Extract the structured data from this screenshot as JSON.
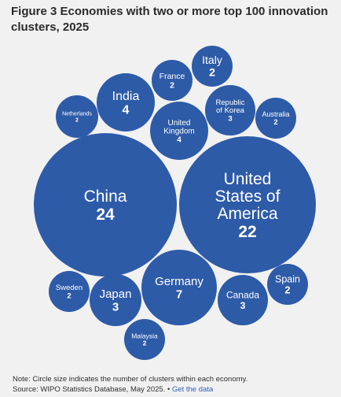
{
  "title": "Figure 3 Economies with two or more top 100 innovation clusters, 2025",
  "chart_data": {
    "type": "bubble",
    "title": "Figure 3 Economies with two or more top 100 innovation clusters, 2025",
    "color": "#2e5ba8",
    "label_color": "#ffffff",
    "series": [
      {
        "name_lines": [
          "China"
        ],
        "value": 24
      },
      {
        "name_lines": [
          "United",
          "States of",
          "America"
        ],
        "value": 22
      },
      {
        "name_lines": [
          "Germany"
        ],
        "value": 7
      },
      {
        "name_lines": [
          "India"
        ],
        "value": 4
      },
      {
        "name_lines": [
          "United",
          "Kingdom"
        ],
        "value": 4
      },
      {
        "name_lines": [
          "Japan"
        ],
        "value": 3
      },
      {
        "name_lines": [
          "Republic",
          "of Korea"
        ],
        "value": 3
      },
      {
        "name_lines": [
          "Canada"
        ],
        "value": 3
      },
      {
        "name_lines": [
          "Italy"
        ],
        "value": 2
      },
      {
        "name_lines": [
          "France"
        ],
        "value": 2
      },
      {
        "name_lines": [
          "Netherlands"
        ],
        "value": 2
      },
      {
        "name_lines": [
          "Australia"
        ],
        "value": 2
      },
      {
        "name_lines": [
          "Sweden"
        ],
        "value": 2
      },
      {
        "name_lines": [
          "Spain"
        ],
        "value": 2
      },
      {
        "name_lines": [
          "Malaysia"
        ],
        "value": 2
      }
    ]
  },
  "notes": {
    "note": "Note: Circle size indicates the number of clusters within each economy.",
    "source": "Source: WIPO Statistics Database, May 2025.",
    "separator": "•",
    "link": "Get the data"
  }
}
